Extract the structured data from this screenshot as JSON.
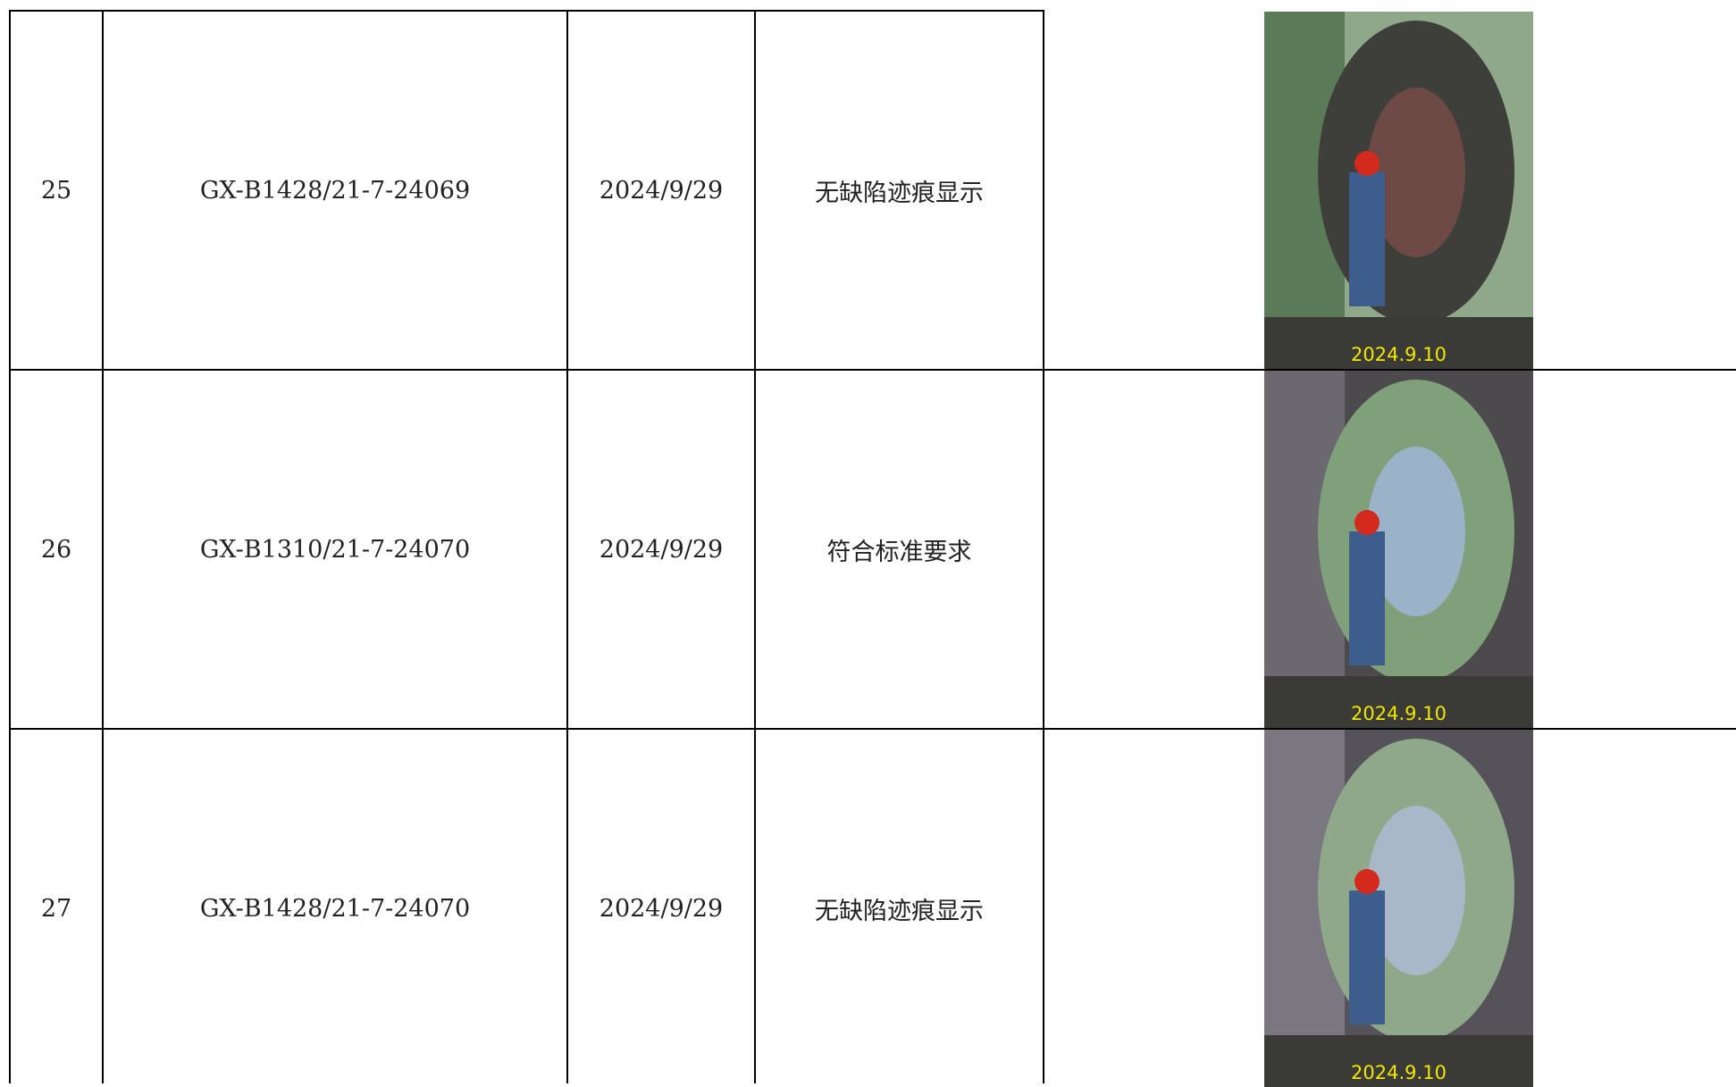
{
  "table": {
    "rows": [
      [
        "25",
        "GX-B1428/21-7-24069",
        "2024/9/29",
        "无缺陷迹痕显示",
        "2024.9.10"
      ],
      [
        "26",
        "GX-B1310/21-7-24070",
        "2024/9/29",
        "符合标准要求",
        "2024.9.10"
      ],
      [
        "27",
        "GX-B1428/21-7-24070",
        "2024/9/29",
        "无缺陷迹痕显示",
        "2024.9.10"
      ]
    ]
  }
}
